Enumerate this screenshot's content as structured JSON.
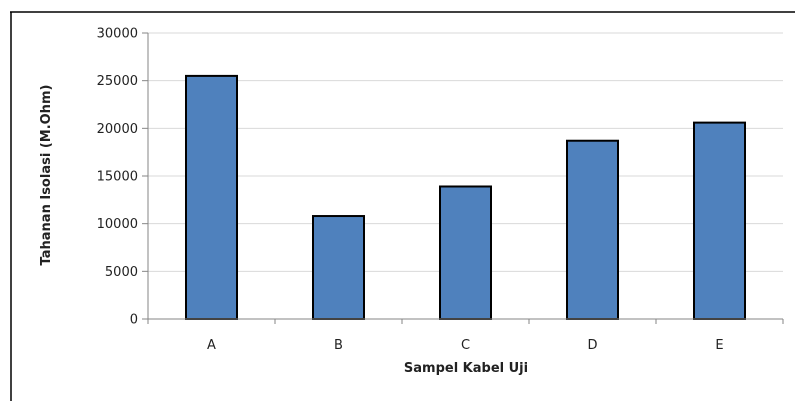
{
  "chart_data": {
    "type": "bar",
    "categories": [
      "A",
      "B",
      "C",
      "D",
      "E"
    ],
    "values": [
      25500,
      10800,
      13900,
      18700,
      20600
    ],
    "title": "",
    "xlabel": "Sampel Kabel Uji",
    "ylabel": "Tahanan Isolasi (M.Ohm)",
    "ylim": [
      0,
      30000
    ],
    "yticks": [
      0,
      5000,
      10000,
      15000,
      20000,
      25000,
      30000
    ],
    "grid": true,
    "legend": "none",
    "colors": {
      "bar_fill": "#4f81bd",
      "bar_stroke": "#000000",
      "grid": "#d9d9d9",
      "axis": "#868686",
      "frame": "#000000"
    }
  }
}
